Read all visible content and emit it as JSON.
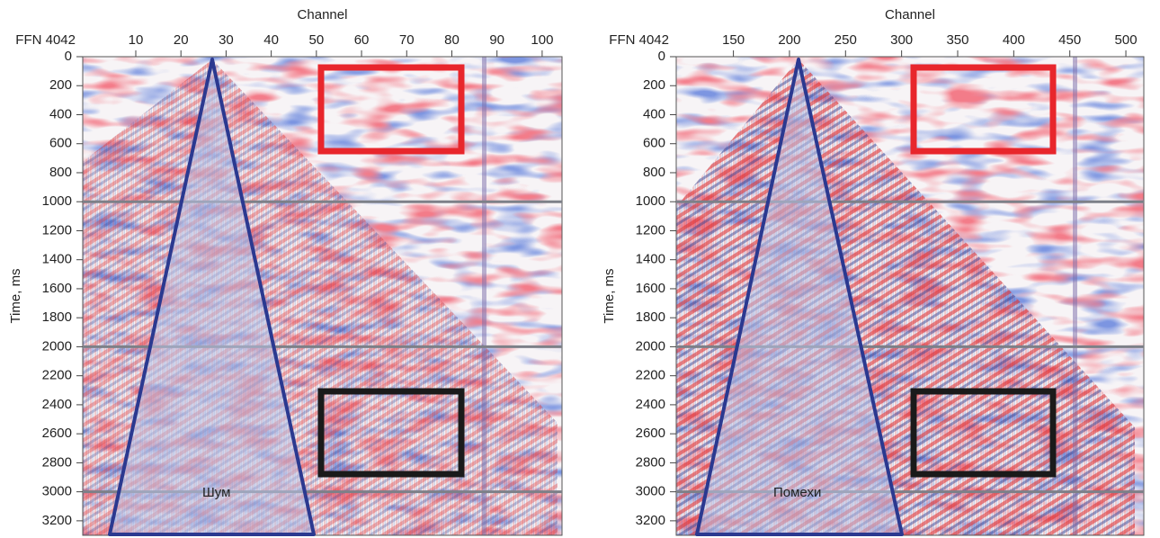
{
  "chart_data": [
    {
      "type": "seismic",
      "x_label": "Channel",
      "x_header": "FFN 4042",
      "y_label": "Time, ms",
      "xlim": [
        -1.75,
        104.4
      ],
      "xticks": [
        10,
        20,
        30,
        40,
        50,
        60,
        70,
        80,
        90,
        100
      ],
      "ylim": [
        0,
        3300
      ],
      "yticks": [
        0,
        200,
        400,
        600,
        800,
        1000,
        1200,
        1400,
        1600,
        1800,
        2000,
        2200,
        2400,
        2600,
        2800,
        3000,
        3200
      ],
      "hlines": [
        1000,
        2000,
        3000
      ],
      "annotation": "Шум"
    },
    {
      "type": "seismic",
      "x_label": "Channel",
      "x_header": "FFN 4042",
      "y_label": "Time, ms",
      "xlim": [
        99,
        516
      ],
      "xticks": [
        150,
        200,
        250,
        300,
        350,
        400,
        450,
        500
      ],
      "ylim": [
        0,
        3300
      ],
      "yticks": [
        0,
        200,
        400,
        600,
        800,
        1000,
        1200,
        1400,
        1600,
        1800,
        2000,
        2200,
        2400,
        2600,
        2800,
        3000,
        3200
      ],
      "hlines": [
        1000,
        2000,
        3000
      ],
      "annotation": "Помехи"
    }
  ]
}
